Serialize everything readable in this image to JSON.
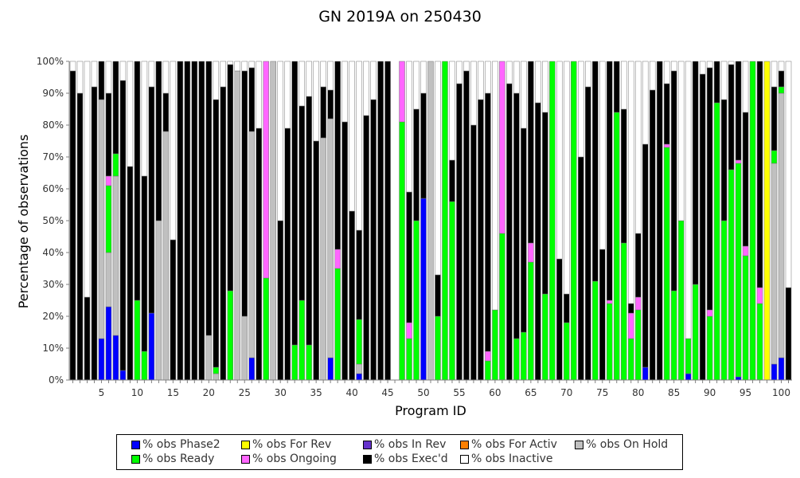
{
  "chart_data": {
    "type": "bar",
    "stacked": true,
    "title": "GN 2019A on 250430",
    "xlabel": "Program ID",
    "ylabel": "Percentage of observations",
    "ylim": [
      0,
      100
    ],
    "y_ticks": [
      "0%",
      "10%",
      "20%",
      "30%",
      "40%",
      "50%",
      "60%",
      "70%",
      "80%",
      "90%",
      "100%"
    ],
    "x_ticks": [
      5,
      10,
      15,
      20,
      25,
      30,
      35,
      40,
      45,
      50,
      55,
      60,
      65,
      70,
      75,
      80,
      85,
      90,
      95,
      100
    ],
    "categories": [
      1,
      2,
      3,
      4,
      5,
      6,
      7,
      8,
      9,
      10,
      11,
      12,
      13,
      14,
      15,
      16,
      17,
      18,
      19,
      20,
      21,
      22,
      23,
      24,
      25,
      26,
      27,
      28,
      29,
      30,
      31,
      32,
      33,
      34,
      35,
      36,
      37,
      38,
      39,
      40,
      41,
      42,
      43,
      44,
      45,
      46,
      47,
      48,
      49,
      50,
      51,
      52,
      53,
      54,
      55,
      56,
      57,
      58,
      59,
      60,
      61,
      62,
      63,
      64,
      65,
      66,
      67,
      68,
      69,
      70,
      71,
      72,
      73,
      74,
      75,
      76,
      77,
      78,
      79,
      80,
      81,
      82,
      83,
      84,
      85,
      86,
      87,
      88,
      89,
      90,
      91,
      92,
      93,
      94,
      95,
      96,
      97,
      98,
      99,
      100,
      101
    ],
    "series": [
      {
        "name": "% obs Phase2",
        "color": "#0000ff",
        "values": [
          0,
          0,
          0,
          0,
          13,
          23,
          14,
          3,
          0,
          0,
          0,
          21,
          0,
          0,
          0,
          0,
          0,
          0,
          0,
          0,
          0,
          0,
          0,
          0,
          0,
          7,
          0,
          0,
          0,
          0,
          0,
          0,
          0,
          0,
          0,
          0,
          7,
          0,
          0,
          0,
          2,
          0,
          0,
          0,
          0,
          0,
          0,
          0,
          0,
          57,
          0,
          0,
          0,
          0,
          0,
          0,
          0,
          0,
          0,
          0,
          0,
          0,
          0,
          0,
          0,
          0,
          0,
          0,
          0,
          0,
          0,
          0,
          0,
          0,
          0,
          0,
          0,
          0,
          0,
          0,
          4,
          0,
          0,
          0,
          0,
          0,
          2,
          0,
          0,
          0,
          0,
          0,
          0,
          1,
          0,
          0,
          0,
          0,
          5,
          7,
          0
        ]
      },
      {
        "name": "% obs For Rev",
        "color": "#ffff00",
        "values": [
          0,
          0,
          0,
          0,
          0,
          0,
          0,
          0,
          0,
          0,
          0,
          0,
          0,
          0,
          0,
          0,
          0,
          0,
          0,
          0,
          0,
          0,
          0,
          0,
          0,
          0,
          0,
          0,
          0,
          0,
          0,
          0,
          0,
          0,
          0,
          0,
          0,
          0,
          0,
          0,
          0,
          0,
          0,
          0,
          0,
          0,
          0,
          0,
          0,
          0,
          0,
          0,
          0,
          0,
          0,
          0,
          0,
          0,
          0,
          0,
          0,
          0,
          0,
          0,
          0,
          0,
          0,
          0,
          0,
          0,
          0,
          0,
          0,
          0,
          0,
          0,
          0,
          0,
          0,
          0,
          0,
          0,
          0,
          0,
          0,
          0,
          0,
          0,
          0,
          0,
          0,
          0,
          0,
          0,
          0,
          0,
          0,
          100,
          0,
          0,
          0
        ]
      },
      {
        "name": "% obs In Rev",
        "color": "#6633cc",
        "values": [
          0,
          0,
          0,
          0,
          0,
          0,
          0,
          0,
          0,
          0,
          0,
          0,
          0,
          0,
          0,
          0,
          0,
          0,
          0,
          0,
          0,
          0,
          0,
          0,
          0,
          0,
          0,
          0,
          0,
          0,
          0,
          0,
          0,
          0,
          0,
          0,
          0,
          0,
          0,
          0,
          0,
          0,
          0,
          0,
          0,
          0,
          0,
          0,
          0,
          0,
          0,
          0,
          0,
          0,
          0,
          0,
          0,
          0,
          0,
          0,
          0,
          0,
          0,
          0,
          0,
          0,
          0,
          0,
          0,
          0,
          0,
          0,
          0,
          0,
          0,
          0,
          0,
          0,
          0,
          0,
          0,
          0,
          0,
          0,
          0,
          0,
          0,
          0,
          0,
          0,
          0,
          0,
          0,
          0,
          0,
          0,
          0,
          0,
          0,
          0,
          0
        ]
      },
      {
        "name": "% obs For Activ",
        "color": "#ff8000",
        "values": [
          0,
          0,
          0,
          0,
          0,
          0,
          0,
          0,
          0,
          0,
          0,
          0,
          0,
          0,
          0,
          0,
          0,
          0,
          0,
          0,
          0,
          0,
          0,
          0,
          0,
          0,
          0,
          0,
          0,
          0,
          0,
          0,
          0,
          0,
          0,
          0,
          0,
          0,
          0,
          0,
          0,
          0,
          0,
          0,
          0,
          0,
          0,
          0,
          0,
          0,
          0,
          0,
          0,
          0,
          0,
          0,
          0,
          0,
          0,
          0,
          0,
          0,
          0,
          0,
          0,
          0,
          0,
          0,
          0,
          0,
          0,
          0,
          0,
          0,
          0,
          0,
          0,
          0,
          0,
          0,
          0,
          0,
          0,
          0,
          0,
          0,
          0,
          0,
          0,
          0,
          0,
          0,
          0,
          0,
          0,
          0,
          0,
          0,
          0,
          0,
          0
        ]
      },
      {
        "name": "% obs On Hold",
        "color": "#c0c0c0",
        "values": [
          0,
          0,
          0,
          0,
          75,
          17,
          50,
          0,
          0,
          0,
          0,
          0,
          50,
          78,
          0,
          0,
          0,
          0,
          0,
          14,
          2,
          0,
          0,
          97,
          20,
          71,
          0,
          0,
          100,
          0,
          0,
          0,
          0,
          0,
          0,
          76,
          75,
          0,
          0,
          0,
          3,
          0,
          0,
          0,
          0,
          0,
          0,
          0,
          0,
          0,
          100,
          0,
          0,
          0,
          0,
          0,
          0,
          0,
          0,
          0,
          0,
          0,
          0,
          0,
          0,
          0,
          0,
          0,
          0,
          0,
          0,
          0,
          0,
          0,
          0,
          0,
          0,
          0,
          0,
          0,
          0,
          0,
          0,
          0,
          0,
          0,
          0,
          0,
          0,
          0,
          0,
          0,
          0,
          0,
          0,
          0,
          0,
          0,
          63,
          83,
          0
        ]
      },
      {
        "name": "% obs Ready",
        "color": "#00ff00",
        "values": [
          0,
          0,
          0,
          0,
          0,
          21,
          7,
          0,
          0,
          25,
          9,
          0,
          0,
          0,
          0,
          0,
          0,
          0,
          0,
          0,
          2,
          0,
          28,
          0,
          0,
          0,
          0,
          32,
          0,
          0,
          0,
          11,
          25,
          11,
          0,
          0,
          0,
          35,
          0,
          0,
          14,
          0,
          0,
          0,
          0,
          0,
          81,
          13,
          50,
          0,
          0,
          20,
          100,
          56,
          0,
          0,
          0,
          0,
          6,
          22,
          46,
          0,
          13,
          15,
          37,
          0,
          27,
          100,
          0,
          18,
          100,
          0,
          0,
          31,
          0,
          24,
          84,
          43,
          13,
          22,
          0,
          0,
          0,
          73,
          28,
          50,
          11,
          30,
          0,
          20,
          87,
          50,
          66,
          67,
          39,
          100,
          24,
          0,
          4,
          2,
          0
        ]
      },
      {
        "name": "% obs Ongoing",
        "color": "#ff66ff",
        "values": [
          0,
          0,
          0,
          0,
          0,
          3,
          0,
          0,
          0,
          0,
          0,
          0,
          0,
          0,
          0,
          0,
          0,
          0,
          0,
          0,
          0,
          0,
          0,
          0,
          0,
          0,
          0,
          68,
          0,
          0,
          0,
          0,
          0,
          0,
          0,
          0,
          0,
          6,
          0,
          0,
          0,
          0,
          0,
          0,
          0,
          0,
          19,
          5,
          0,
          0,
          0,
          0,
          0,
          0,
          0,
          0,
          0,
          0,
          3,
          0,
          54,
          0,
          0,
          0,
          6,
          0,
          0,
          0,
          0,
          0,
          0,
          0,
          0,
          0,
          0,
          1,
          0,
          0,
          8,
          4,
          0,
          0,
          0,
          1,
          0,
          0,
          0,
          0,
          0,
          2,
          0,
          0,
          0,
          1,
          3,
          0,
          5,
          0,
          0,
          0,
          0
        ]
      },
      {
        "name": "% obs Exec'd",
        "color": "#000000",
        "values": [
          97,
          90,
          26,
          92,
          12,
          26,
          29,
          91,
          67,
          75,
          55,
          71,
          50,
          12,
          44,
          100,
          100,
          100,
          100,
          86,
          84,
          92,
          71,
          0,
          77,
          20,
          79,
          0,
          0,
          50,
          79,
          89,
          61,
          78,
          75,
          16,
          9,
          59,
          81,
          53,
          28,
          83,
          88,
          100,
          100,
          0,
          0,
          41,
          35,
          33,
          0,
          13,
          0,
          13,
          93,
          97,
          80,
          88,
          81,
          0,
          0,
          93,
          77,
          64,
          57,
          87,
          57,
          0,
          38,
          9,
          0,
          70,
          92,
          69,
          41,
          75,
          16,
          42,
          3,
          20,
          70,
          91,
          100,
          19,
          69,
          0,
          0,
          70,
          96,
          76,
          13,
          38,
          33,
          31,
          42,
          0,
          71,
          0,
          20,
          5,
          29
        ]
      },
      {
        "name": "% obs Inactive",
        "color": "#ffffff",
        "values": [
          3,
          10,
          74,
          8,
          0,
          10,
          0,
          6,
          33,
          0,
          36,
          8,
          0,
          10,
          56,
          0,
          0,
          0,
          0,
          0,
          12,
          8,
          1,
          3,
          3,
          2,
          21,
          0,
          0,
          50,
          21,
          0,
          14,
          11,
          25,
          8,
          9,
          0,
          19,
          47,
          53,
          17,
          12,
          0,
          0,
          0,
          0,
          41,
          15,
          10,
          0,
          67,
          0,
          31,
          7,
          3,
          20,
          12,
          10,
          78,
          0,
          7,
          10,
          21,
          0,
          13,
          16,
          0,
          62,
          73,
          0,
          30,
          8,
          0,
          59,
          0,
          0,
          15,
          76,
          54,
          26,
          9,
          0,
          7,
          3,
          50,
          87,
          0,
          4,
          2,
          0,
          12,
          1,
          1,
          16,
          0,
          0,
          0,
          8,
          3,
          71
        ]
      }
    ]
  },
  "legend_items": [
    {
      "label": "% obs Phase2",
      "color": "#0000ff"
    },
    {
      "label": "% obs For Rev",
      "color": "#ffff00"
    },
    {
      "label": "% obs In Rev",
      "color": "#6633cc"
    },
    {
      "label": "% obs For Activ",
      "color": "#ff8000"
    },
    {
      "label": "% obs On Hold",
      "color": "#c0c0c0"
    },
    {
      "label": "% obs Ready",
      "color": "#00ff00"
    },
    {
      "label": "% obs Ongoing",
      "color": "#ff66ff"
    },
    {
      "label": "% obs Exec'd",
      "color": "#000000"
    },
    {
      "label": "% obs Inactive",
      "color": "#ffffff"
    }
  ]
}
